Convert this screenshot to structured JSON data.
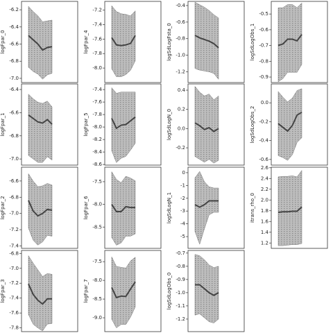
{
  "chart_data": [
    {
      "type": "line",
      "ylabel": "logFpar_0",
      "ylim": [
        -7.049,
        -6.102
      ],
      "yticks": [
        -6.2,
        -6.4,
        -6.6,
        -6.8,
        {
          "value": -7.0,
          "label": "-7.0"
        }
      ],
      "color": "#444444",
      "band_color": "#bdbdbd",
      "values": [
        -6.5,
        -6.55,
        -6.6,
        -6.67,
        -6.64,
        -6.63
      ],
      "upper": [
        -6.16,
        -6.22,
        -6.27,
        -6.34,
        -6.33,
        -6.32
      ],
      "lower": [
        -6.87,
        -6.92,
        -6.95,
        -7.01,
        -6.96,
        -6.94
      ]
    },
    {
      "type": "line",
      "ylabel": "logFpar_1",
      "ylim": [
        -7.053,
        -6.352
      ],
      "yticks": [
        -6.4,
        -6.6,
        -6.8,
        {
          "value": -7.0,
          "label": "-7.0"
        }
      ],
      "color": "#444444",
      "band_color": "#bdbdbd",
      "values": [
        -6.62,
        -6.65,
        -6.68,
        -6.69,
        -6.66,
        -6.7
      ],
      "upper": [
        -6.44,
        -6.48,
        -6.51,
        -6.52,
        -6.5,
        -6.55
      ],
      "lower": [
        -6.97,
        -7.0,
        -7.03,
        -7.03,
        -6.98,
        -7.01
      ]
    },
    {
      "type": "line",
      "ylabel": "logFpar_2",
      "ylim": [
        -7.43,
        -6.43
      ],
      "yticks": [
        -6.6,
        -6.8,
        {
          "value": -7.0,
          "label": "-7.0"
        },
        -7.2,
        -7.4
      ],
      "color": "#444444",
      "band_color": "#bdbdbd",
      "values": [
        -6.84,
        -6.97,
        -7.03,
        -7.0,
        -6.95,
        -6.96
      ],
      "upper": [
        -6.51,
        -6.6,
        -6.67,
        -6.66,
        -6.63,
        -6.65
      ],
      "lower": [
        -7.18,
        -7.33,
        -7.39,
        -7.35,
        -7.27,
        -7.28
      ]
    },
    {
      "type": "line",
      "ylabel": "logFpar_3",
      "ylim": [
        -7.85,
        -6.76
      ],
      "yticks": [
        -6.8,
        {
          "value": -7.0,
          "label": "-7.0"
        },
        -7.2,
        -7.4,
        -7.6,
        -7.8
      ],
      "color": "#444444",
      "band_color": "#bdbdbd",
      "values": [
        -7.21,
        -7.35,
        -7.43,
        -7.48,
        -7.41,
        -7.41
      ],
      "upper": [
        -6.83,
        -6.93,
        -7.02,
        -7.11,
        -7.07,
        -7.08
      ],
      "lower": [
        -7.62,
        -7.75,
        -7.8,
        -7.84,
        -7.75,
        -7.74
      ]
    },
    {
      "type": "line",
      "ylabel": "logFpar_4",
      "ylim": [
        -8.2,
        -7.08
      ],
      "yticks": [
        -7.2,
        -7.4,
        -7.6,
        -7.8,
        {
          "value": -8.0,
          "label": "-8.0"
        }
      ],
      "color": "#444444",
      "band_color": "#bdbdbd",
      "values": [
        -7.58,
        -7.68,
        -7.69,
        -7.68,
        -7.66,
        -7.55
      ],
      "upper": [
        -7.14,
        -7.22,
        -7.25,
        -7.26,
        -7.28,
        -7.21
      ],
      "lower": [
        -8.01,
        -8.12,
        -8.12,
        -8.09,
        -8.03,
        -7.9
      ]
    },
    {
      "type": "line",
      "ylabel": "logFpar_5",
      "ylim": [
        -8.61,
        -7.31
      ],
      "yticks": [
        -7.4,
        -7.6,
        -7.8,
        {
          "value": -8.0,
          "label": "-8.0"
        },
        -8.2,
        -8.4,
        -8.6
      ],
      "color": "#444444",
      "band_color": "#bdbdbd",
      "values": [
        -7.86,
        -8.02,
        -7.97,
        -7.96,
        -7.9,
        -7.84
      ],
      "upper": [
        -7.37,
        -7.46,
        -7.44,
        -7.44,
        -7.44,
        -7.44
      ],
      "lower": [
        -8.38,
        -8.57,
        -8.5,
        -8.47,
        -8.37,
        -8.26
      ]
    },
    {
      "type": "line",
      "ylabel": "logFpar_6",
      "ylim": [
        -8.97,
        -7.18
      ],
      "yticks": [
        -7.5,
        {
          "value": -8.0,
          "label": "-8.0"
        },
        -8.5
      ],
      "color": "#444444",
      "band_color": "#bdbdbd",
      "values": [
        -8.0,
        -8.16,
        -8.16,
        -8.05,
        -8.07,
        -8.07
      ],
      "upper": [
        -7.28,
        -7.45,
        -7.52,
        -7.38,
        -7.42,
        -7.48
      ],
      "lower": [
        -8.73,
        -8.9,
        -8.85,
        -8.7,
        -8.7,
        -8.65
      ]
    },
    {
      "type": "line",
      "ylabel": "logFpar_7",
      "ylim": [
        -9.37,
        -7.2
      ],
      "yticks": [
        -7.5,
        {
          "value": -8.0,
          "label": "-8.0"
        },
        -8.5,
        {
          "value": -9.0,
          "label": "-9.0"
        }
      ],
      "color": "#444444",
      "band_color": "#bdbdbd",
      "values": [
        -8.19,
        -8.46,
        -8.42,
        -8.43,
        -8.23,
        -8.04
      ],
      "upper": [
        -7.37,
        -7.63,
        -7.65,
        -7.67,
        -7.48,
        -7.38
      ],
      "lower": [
        -9.04,
        -9.27,
        -9.18,
        -9.18,
        -8.98,
        -8.71
      ]
    },
    {
      "type": "line",
      "ylabel": "logSdLogFsta_0",
      "ylim": [
        -1.33,
        -0.35
      ],
      "yticks": [
        -0.4,
        -0.6,
        -0.8,
        {
          "value": -1.0,
          "label": "-1.0"
        },
        -1.2
      ],
      "color": "#444444",
      "band_color": "#bdbdbd",
      "values": [
        -0.76,
        -0.79,
        -0.81,
        -0.83,
        -0.86,
        -0.91
      ],
      "upper": [
        -0.36,
        -0.39,
        -0.42,
        -0.46,
        -0.51,
        -0.55
      ],
      "lower": [
        -1.16,
        -1.18,
        -1.19,
        -1.2,
        -1.22,
        -1.29
      ]
    },
    {
      "type": "line",
      "ylabel": "logSdLogN_0",
      "ylim": [
        -0.38,
        0.465
      ],
      "yticks": [
        0.4,
        0.2,
        {
          "value": 0,
          "label": "0.0"
        },
        -0.2
      ],
      "color": "#444444",
      "band_color": "#bdbdbd",
      "values": [
        0.06,
        0.03,
        -0.01,
        0.01,
        -0.03,
        0.0
      ],
      "upper": [
        0.44,
        0.38,
        0.34,
        0.36,
        0.3,
        0.34
      ],
      "lower": [
        -0.29,
        -0.32,
        -0.35,
        -0.32,
        -0.36,
        -0.33
      ]
    },
    {
      "type": "line",
      "ylabel": "logSdLogN_1",
      "ylim": [
        -5.92,
        0.43
      ],
      "yticks": [
        0,
        -1,
        -2,
        -3,
        -4,
        -5
      ],
      "color": "#444444",
      "band_color": "#bdbdbd",
      "values": [
        -2.5,
        -2.7,
        -2.5,
        -2.2,
        -2.2,
        -2.2
      ],
      "upper": [
        -0.4,
        0.1,
        -0.7,
        -1.1,
        -1.2,
        -1.2
      ],
      "lower": [
        -4.6,
        -5.6,
        -4.4,
        -3.3,
        -3.1,
        -3.1
      ]
    },
    {
      "type": "line",
      "ylabel": "logSdLogObs_0",
      "ylim": [
        -1.295,
        -0.68
      ],
      "yticks": [
        -0.7,
        -0.8,
        -0.9,
        {
          "value": -1.0,
          "label": "-1.0"
        },
        -1.1,
        -1.2
      ],
      "color": "#444444",
      "band_color": "#bdbdbd",
      "values": [
        -0.94,
        -0.94,
        -0.97,
        -1.0,
        -1.02,
        -1.0
      ],
      "upper": [
        -0.71,
        -0.72,
        -0.75,
        -0.79,
        -0.81,
        -0.8
      ],
      "lower": [
        -1.17,
        -1.16,
        -1.19,
        -1.22,
        -1.23,
        -1.2
      ]
    },
    {
      "type": "line",
      "ylabel": "logSdLogObs_1",
      "ylim": [
        -0.935,
        -0.42
      ],
      "yticks": [
        -0.5,
        -0.6,
        -0.7,
        -0.8,
        -0.9
      ],
      "color": "#444444",
      "band_color": "#bdbdbd",
      "values": [
        -0.7,
        -0.69,
        -0.66,
        -0.66,
        -0.67,
        -0.63
      ],
      "upper": [
        -0.46,
        -0.46,
        -0.44,
        -0.44,
        -0.46,
        -0.43
      ],
      "lower": [
        -0.93,
        -0.91,
        -0.87,
        -0.87,
        -0.87,
        -0.82
      ]
    },
    {
      "type": "line",
      "ylabel": "logSdLogObs_2",
      "ylim": [
        -0.66,
        0.2
      ],
      "yticks": [
        {
          "value": 0,
          "label": "0.0"
        },
        -0.2,
        -0.4,
        -0.6
      ],
      "color": "#444444",
      "band_color": "#bdbdbd",
      "values": [
        -0.22,
        -0.26,
        -0.3,
        -0.24,
        -0.13,
        -0.1
      ],
      "upper": [
        0.12,
        0.06,
        0.01,
        0.05,
        0.13,
        0.15
      ],
      "lower": [
        -0.56,
        -0.58,
        -0.61,
        -0.55,
        -0.42,
        -0.37
      ]
    },
    {
      "type": "line",
      "ylabel": "itrans_rho_0",
      "ylim": [
        1.1,
        2.61
      ],
      "yticks": [
        2.6,
        2.4,
        2.2,
        {
          "value": 2.0,
          "label": "2.0"
        },
        1.8,
        1.6,
        1.4,
        1.2
      ],
      "color": "#444444",
      "band_color": "#bdbdbd",
      "values": [
        1.77,
        1.78,
        1.78,
        1.79,
        1.79,
        1.87
      ],
      "upper": [
        2.43,
        2.44,
        2.44,
        2.45,
        2.43,
        2.55
      ],
      "lower": [
        1.15,
        1.15,
        1.16,
        1.17,
        1.17,
        1.19
      ]
    }
  ]
}
